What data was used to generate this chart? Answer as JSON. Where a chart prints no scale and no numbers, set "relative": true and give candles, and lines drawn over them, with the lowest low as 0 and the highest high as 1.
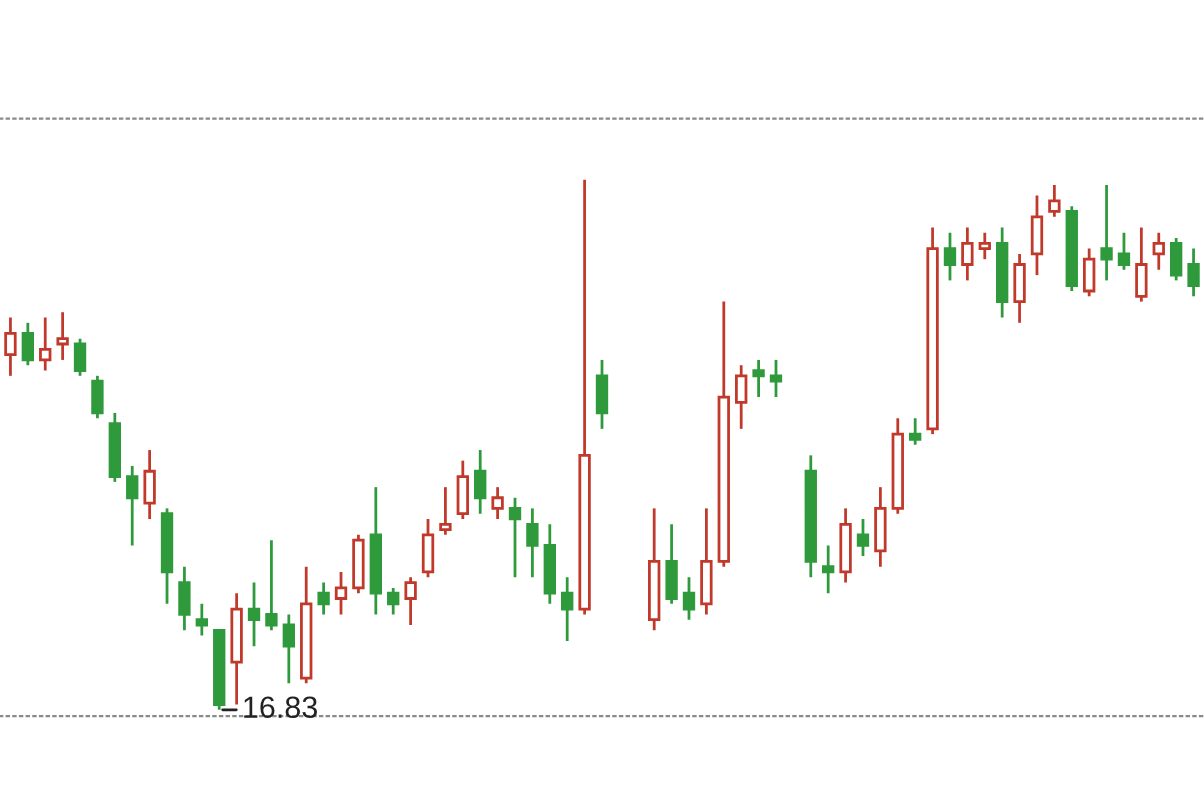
{
  "chart_data": {
    "type": "candlestick",
    "relative": true,
    "categories": [
      null,
      null,
      null,
      null,
      null,
      null,
      null,
      null,
      null,
      null,
      null,
      null,
      null,
      null,
      null,
      null,
      null,
      null,
      null,
      null,
      null,
      null,
      null,
      null,
      null,
      null,
      null,
      null,
      null,
      null,
      null,
      null,
      null,
      null,
      null,
      null,
      null,
      null,
      null,
      null,
      null,
      null,
      null,
      null,
      null,
      null,
      null,
      null,
      null,
      null,
      null,
      null,
      null,
      null,
      null,
      null,
      null,
      null,
      null,
      null,
      null,
      null,
      null,
      null,
      null,
      null,
      null,
      null,
      null
    ],
    "ohlc": [
      [
        0.67,
        0.74,
        0.63,
        0.71
      ],
      [
        0.71,
        0.73,
        0.65,
        0.66
      ],
      [
        0.66,
        0.74,
        0.64,
        0.68
      ],
      [
        0.69,
        0.75,
        0.66,
        0.7
      ],
      [
        0.69,
        0.7,
        0.63,
        0.64
      ],
      [
        0.62,
        0.63,
        0.55,
        0.56
      ],
      [
        0.54,
        0.56,
        0.43,
        0.44
      ],
      [
        0.44,
        0.46,
        0.31,
        0.4
      ],
      [
        0.39,
        0.49,
        0.36,
        0.45
      ],
      [
        0.37,
        0.38,
        0.2,
        0.26
      ],
      [
        0.24,
        0.27,
        0.15,
        0.18
      ],
      [
        0.17,
        0.2,
        0.14,
        0.16
      ],
      [
        0.15,
        0.15,
        0,
        0.01
      ],
      [
        0.09,
        0.22,
        0.01,
        0.19
      ],
      [
        0.19,
        0.24,
        0.12,
        0.17
      ],
      [
        0.18,
        0.32,
        0.15,
        0.16
      ],
      [
        0.16,
        0.18,
        0.05,
        0.12
      ],
      [
        0.06,
        0.27,
        0.05,
        0.2
      ],
      [
        0.22,
        0.24,
        0.18,
        0.2
      ],
      [
        0.21,
        0.26,
        0.18,
        0.23
      ],
      [
        0.23,
        0.33,
        0.22,
        0.32
      ],
      [
        0.33,
        0.42,
        0.18,
        0.22
      ],
      [
        0.22,
        0.23,
        0.18,
        0.2
      ],
      [
        0.21,
        0.25,
        0.16,
        0.24
      ],
      [
        0.26,
        0.36,
        0.25,
        0.33
      ],
      [
        0.34,
        0.42,
        0.33,
        0.35
      ],
      [
        0.37,
        0.47,
        0.36,
        0.44
      ],
      [
        0.45,
        0.49,
        0.37,
        0.4
      ],
      [
        0.38,
        0.42,
        0.36,
        0.4
      ],
      [
        0.38,
        0.4,
        0.25,
        0.36
      ],
      [
        0.35,
        0.38,
        0.25,
        0.31
      ],
      [
        0.31,
        0.35,
        0.2,
        0.22
      ],
      [
        0.22,
        0.25,
        0.13,
        0.19
      ],
      [
        0.19,
        1,
        0.18,
        0.48
      ],
      [
        0.63,
        0.66,
        0.53,
        0.56
      ],
      null,
      null,
      [
        0.17,
        0.38,
        0.15,
        0.28
      ],
      [
        0.28,
        0.35,
        0.2,
        0.21
      ],
      [
        0.22,
        0.25,
        0.17,
        0.19
      ],
      [
        0.2,
        0.38,
        0.18,
        0.28
      ],
      [
        0.28,
        0.77,
        0.27,
        0.59
      ],
      [
        0.58,
        0.65,
        0.53,
        0.63
      ],
      [
        0.64,
        0.66,
        0.59,
        0.63
      ],
      [
        0.63,
        0.66,
        0.59,
        0.62
      ],
      null,
      [
        0.45,
        0.48,
        0.25,
        0.28
      ],
      [
        0.27,
        0.31,
        0.22,
        0.26
      ],
      [
        0.26,
        0.38,
        0.24,
        0.35
      ],
      [
        0.33,
        0.36,
        0.29,
        0.31
      ],
      [
        0.3,
        0.42,
        0.27,
        0.38
      ],
      [
        0.38,
        0.55,
        0.37,
        0.52
      ],
      [
        0.52,
        0.55,
        0.5,
        0.51
      ],
      [
        0.53,
        0.91,
        0.52,
        0.87
      ],
      [
        0.87,
        0.9,
        0.81,
        0.84
      ],
      [
        0.84,
        0.91,
        0.81,
        0.88
      ],
      [
        0.87,
        0.9,
        0.85,
        0.88
      ],
      [
        0.88,
        0.91,
        0.74,
        0.77
      ],
      [
        0.77,
        0.86,
        0.73,
        0.84
      ],
      [
        0.86,
        0.97,
        0.82,
        0.93
      ],
      [
        0.94,
        0.99,
        0.93,
        0.96
      ],
      [
        0.94,
        0.95,
        0.79,
        0.8
      ],
      [
        0.79,
        0.87,
        0.78,
        0.85
      ],
      [
        0.87,
        0.99,
        0.81,
        0.85
      ],
      [
        0.86,
        0.9,
        0.83,
        0.84
      ],
      [
        0.78,
        0.91,
        0.77,
        0.84
      ],
      [
        0.86,
        0.9,
        0.83,
        0.88
      ],
      [
        0.88,
        0.89,
        0.81,
        0.82
      ],
      [
        0.84,
        0.87,
        0.78,
        0.8
      ]
    ],
    "annotations": [
      "16.83"
    ]
  }
}
